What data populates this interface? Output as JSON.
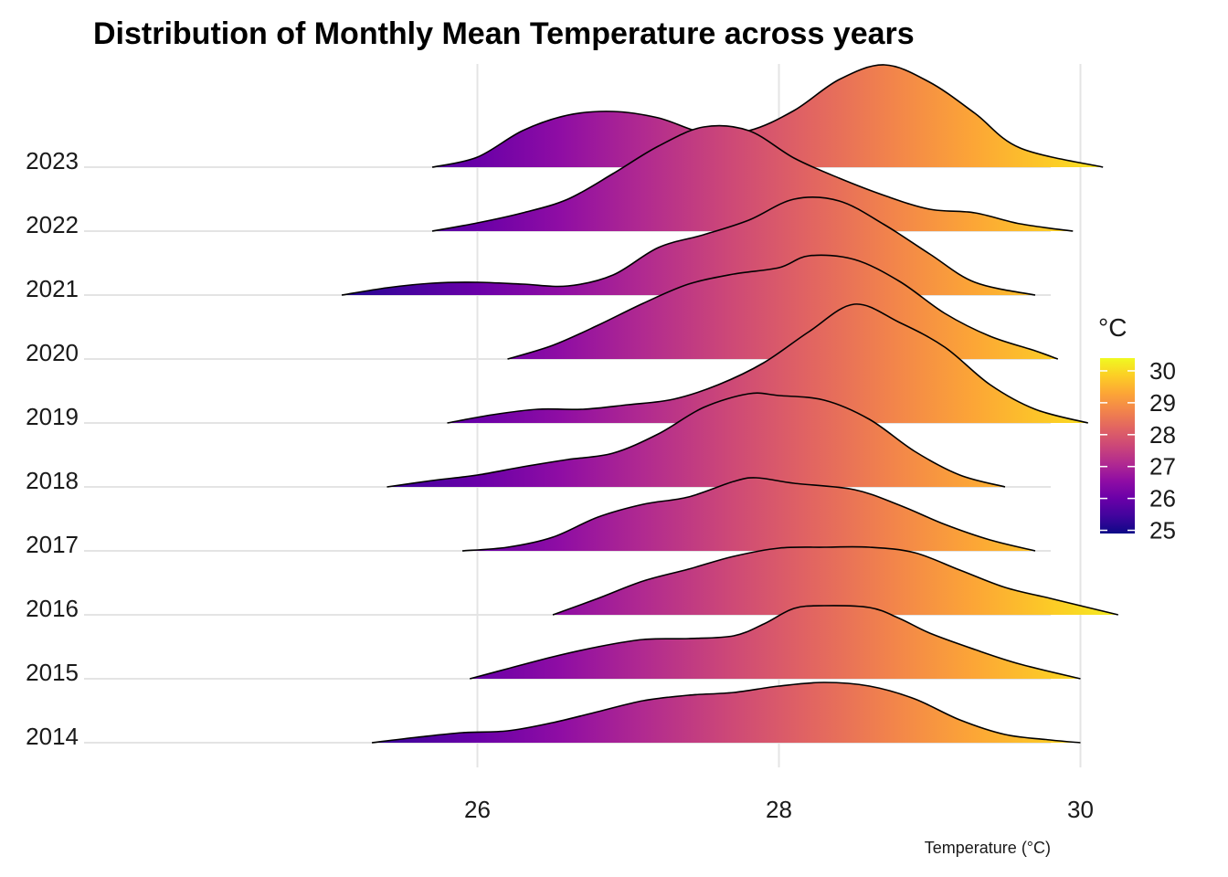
{
  "chart_data": {
    "type": "ridgeline",
    "title": "Distribution of Monthly Mean Temperature across years",
    "xlabel": "Temperature (°C)",
    "ylabel": "",
    "xlim": [
      24.6,
      30.8
    ],
    "x_ticks": [
      26,
      28,
      30
    ],
    "grid": true,
    "legend": {
      "title": "°C",
      "position": "right",
      "ticks": [
        30,
        29,
        28,
        27,
        26,
        25
      ],
      "range": [
        24.9,
        30.4
      ]
    },
    "colorscale": "plasma",
    "series": [
      {
        "name": "2014",
        "points": [
          [
            25.3,
            0.0
          ],
          [
            25.6,
            0.06
          ],
          [
            25.9,
            0.11
          ],
          [
            26.2,
            0.13
          ],
          [
            26.5,
            0.22
          ],
          [
            26.8,
            0.34
          ],
          [
            27.1,
            0.46
          ],
          [
            27.4,
            0.52
          ],
          [
            27.7,
            0.55
          ],
          [
            28.0,
            0.62
          ],
          [
            28.3,
            0.66
          ],
          [
            28.6,
            0.62
          ],
          [
            28.9,
            0.48
          ],
          [
            29.2,
            0.25
          ],
          [
            29.5,
            0.09
          ],
          [
            29.8,
            0.03
          ],
          [
            30.0,
            0.0
          ]
        ]
      },
      {
        "name": "2015",
        "points": [
          [
            25.95,
            0.0
          ],
          [
            26.2,
            0.11
          ],
          [
            26.5,
            0.24
          ],
          [
            26.8,
            0.35
          ],
          [
            27.1,
            0.43
          ],
          [
            27.4,
            0.44
          ],
          [
            27.7,
            0.47
          ],
          [
            27.9,
            0.6
          ],
          [
            28.1,
            0.77
          ],
          [
            28.3,
            0.8
          ],
          [
            28.6,
            0.78
          ],
          [
            28.8,
            0.66
          ],
          [
            29.0,
            0.5
          ],
          [
            29.3,
            0.32
          ],
          [
            29.6,
            0.16
          ],
          [
            30.0,
            0.0
          ]
        ]
      },
      {
        "name": "2016",
        "points": [
          [
            26.5,
            0.0
          ],
          [
            26.8,
            0.18
          ],
          [
            27.1,
            0.37
          ],
          [
            27.4,
            0.5
          ],
          [
            27.7,
            0.64
          ],
          [
            28.0,
            0.73
          ],
          [
            28.3,
            0.74
          ],
          [
            28.6,
            0.74
          ],
          [
            28.9,
            0.68
          ],
          [
            29.2,
            0.49
          ],
          [
            29.5,
            0.3
          ],
          [
            29.8,
            0.18
          ],
          [
            30.1,
            0.06
          ],
          [
            30.25,
            0.0
          ]
        ]
      },
      {
        "name": "2017",
        "points": [
          [
            25.9,
            0.0
          ],
          [
            26.2,
            0.04
          ],
          [
            26.5,
            0.15
          ],
          [
            26.8,
            0.37
          ],
          [
            27.1,
            0.51
          ],
          [
            27.4,
            0.59
          ],
          [
            27.7,
            0.76
          ],
          [
            27.85,
            0.8
          ],
          [
            28.1,
            0.74
          ],
          [
            28.5,
            0.67
          ],
          [
            28.8,
            0.5
          ],
          [
            29.1,
            0.29
          ],
          [
            29.4,
            0.12
          ],
          [
            29.7,
            0.0
          ]
        ]
      },
      {
        "name": "2018",
        "points": [
          [
            25.4,
            0.0
          ],
          [
            25.7,
            0.07
          ],
          [
            26.0,
            0.13
          ],
          [
            26.3,
            0.22
          ],
          [
            26.6,
            0.3
          ],
          [
            26.9,
            0.37
          ],
          [
            27.2,
            0.58
          ],
          [
            27.5,
            0.87
          ],
          [
            27.8,
            1.02
          ],
          [
            28.0,
            1.0
          ],
          [
            28.3,
            0.95
          ],
          [
            28.6,
            0.74
          ],
          [
            28.9,
            0.39
          ],
          [
            29.2,
            0.13
          ],
          [
            29.5,
            0.0
          ]
        ]
      },
      {
        "name": "2019",
        "points": [
          [
            25.8,
            0.0
          ],
          [
            26.1,
            0.09
          ],
          [
            26.4,
            0.15
          ],
          [
            26.7,
            0.15
          ],
          [
            27.0,
            0.2
          ],
          [
            27.3,
            0.26
          ],
          [
            27.6,
            0.42
          ],
          [
            27.9,
            0.66
          ],
          [
            28.2,
            1.0
          ],
          [
            28.5,
            1.3
          ],
          [
            28.8,
            1.1
          ],
          [
            29.1,
            0.83
          ],
          [
            29.4,
            0.42
          ],
          [
            29.7,
            0.15
          ],
          [
            30.05,
            0.0
          ]
        ]
      },
      {
        "name": "2020",
        "points": [
          [
            26.2,
            0.0
          ],
          [
            26.5,
            0.15
          ],
          [
            26.8,
            0.37
          ],
          [
            27.1,
            0.61
          ],
          [
            27.4,
            0.82
          ],
          [
            27.7,
            0.93
          ],
          [
            28.0,
            1.0
          ],
          [
            28.2,
            1.13
          ],
          [
            28.5,
            1.09
          ],
          [
            28.8,
            0.85
          ],
          [
            29.1,
            0.5
          ],
          [
            29.4,
            0.25
          ],
          [
            29.7,
            0.09
          ],
          [
            29.85,
            0.0
          ]
        ]
      },
      {
        "name": "2021",
        "points": [
          [
            25.1,
            0.0
          ],
          [
            25.4,
            0.08
          ],
          [
            25.7,
            0.13
          ],
          [
            26.0,
            0.14
          ],
          [
            26.3,
            0.12
          ],
          [
            26.6,
            0.1
          ],
          [
            26.9,
            0.22
          ],
          [
            27.2,
            0.52
          ],
          [
            27.5,
            0.66
          ],
          [
            27.8,
            0.82
          ],
          [
            28.1,
            1.05
          ],
          [
            28.4,
            1.03
          ],
          [
            28.7,
            0.77
          ],
          [
            29.0,
            0.45
          ],
          [
            29.3,
            0.14
          ],
          [
            29.7,
            0.0
          ]
        ]
      },
      {
        "name": "2022",
        "points": [
          [
            25.7,
            0.0
          ],
          [
            26.0,
            0.09
          ],
          [
            26.3,
            0.2
          ],
          [
            26.6,
            0.35
          ],
          [
            26.9,
            0.63
          ],
          [
            27.2,
            0.93
          ],
          [
            27.5,
            1.14
          ],
          [
            27.8,
            1.1
          ],
          [
            28.1,
            0.8
          ],
          [
            28.4,
            0.58
          ],
          [
            28.7,
            0.39
          ],
          [
            29.0,
            0.24
          ],
          [
            29.3,
            0.2
          ],
          [
            29.6,
            0.08
          ],
          [
            29.95,
            0.0
          ]
        ]
      },
      {
        "name": "2023",
        "points": [
          [
            25.7,
            0.0
          ],
          [
            26.0,
            0.11
          ],
          [
            26.3,
            0.4
          ],
          [
            26.6,
            0.57
          ],
          [
            26.9,
            0.61
          ],
          [
            27.2,
            0.54
          ],
          [
            27.5,
            0.38
          ],
          [
            27.8,
            0.4
          ],
          [
            28.1,
            0.62
          ],
          [
            28.4,
            0.96
          ],
          [
            28.7,
            1.12
          ],
          [
            29.0,
            0.93
          ],
          [
            29.3,
            0.59
          ],
          [
            29.6,
            0.21
          ],
          [
            30.15,
            0.0
          ]
        ]
      }
    ]
  }
}
